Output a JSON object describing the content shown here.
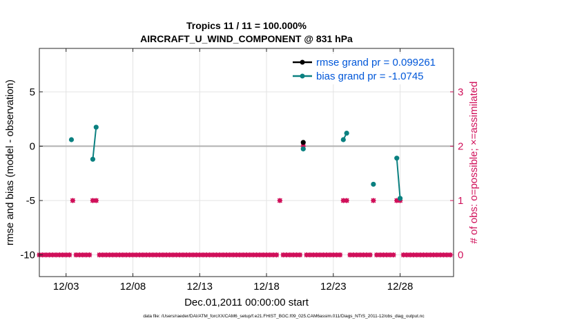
{
  "chart_data": {
    "type": "scatter",
    "title": "Tropics 11 / 11 = 100.000%",
    "subtitle": "AIRCRAFT_U_WIND_COMPONENT @ 831 hPa",
    "xlabel": "Dec.01,2011 00:00:00 start",
    "ylabel_left": "rmse and bias (model - observation)",
    "ylabel_right": "# of obs: o=possible; ×=assimilated",
    "footnote": "data file: /Users/raeder/DAI/ATM_forcXX/CAM6_setup/f.e21.FHIST_BGC.f09_025.CAM6assim.011/Diags_NTrS_2011-12/obs_diag_output.nc",
    "x_tick_labels": [
      "12/03",
      "12/08",
      "12/13",
      "12/18",
      "12/23",
      "12/28"
    ],
    "x_tick_days": [
      3,
      8,
      13,
      18,
      23,
      28
    ],
    "xlim_days": [
      1,
      32
    ],
    "ylim_left": [
      -12,
      9
    ],
    "y_ticks_left": [
      -10,
      -5,
      0,
      5
    ],
    "ylim_right": [
      -0.4,
      3.8
    ],
    "y_ticks_right": [
      0,
      1,
      2,
      3
    ],
    "grid": true,
    "legend_placement": "top-right",
    "series": [
      {
        "name": "rmse grand pr = 0.099261",
        "color": "#000000",
        "axis": "left",
        "points": [
          [
            20.75,
            0.35
          ]
        ]
      },
      {
        "name": "bias grand pr = -1.0745",
        "color": "#0a8080",
        "axis": "left",
        "points": [
          [
            3.4,
            0.6
          ],
          [
            5.0,
            -1.2
          ],
          [
            5.25,
            1.75
          ],
          [
            20.75,
            -0.25
          ],
          [
            23.75,
            0.6
          ],
          [
            24.0,
            1.2
          ],
          [
            26.0,
            -3.5
          ],
          [
            27.75,
            -1.1
          ],
          [
            28.0,
            -4.8
          ]
        ]
      }
    ],
    "obs_counts": {
      "possible_color": "#d0105a",
      "assimilated_color": "#d0105a",
      "axis": "right",
      "points": [
        [
          1.0,
          0
        ],
        [
          1.25,
          0
        ],
        [
          1.5,
          0
        ],
        [
          1.75,
          0
        ],
        [
          2.0,
          0
        ],
        [
          2.25,
          0
        ],
        [
          2.5,
          0
        ],
        [
          2.75,
          0
        ],
        [
          3.0,
          0
        ],
        [
          3.25,
          0
        ],
        [
          3.5,
          1
        ],
        [
          3.75,
          0
        ],
        [
          4.0,
          0
        ],
        [
          4.25,
          0
        ],
        [
          4.5,
          0
        ],
        [
          4.75,
          0
        ],
        [
          5.0,
          1
        ],
        [
          5.25,
          1
        ],
        [
          5.5,
          0
        ],
        [
          5.75,
          0
        ],
        [
          6.0,
          0
        ],
        [
          6.25,
          0
        ],
        [
          6.5,
          0
        ],
        [
          6.75,
          0
        ],
        [
          7.0,
          0
        ],
        [
          7.25,
          0
        ],
        [
          7.5,
          0
        ],
        [
          7.75,
          0
        ],
        [
          8.0,
          0
        ],
        [
          8.25,
          0
        ],
        [
          8.5,
          0
        ],
        [
          8.75,
          0
        ],
        [
          9.0,
          0
        ],
        [
          9.25,
          0
        ],
        [
          9.5,
          0
        ],
        [
          9.75,
          0
        ],
        [
          10.0,
          0
        ],
        [
          10.25,
          0
        ],
        [
          10.5,
          0
        ],
        [
          10.75,
          0
        ],
        [
          11.0,
          0
        ],
        [
          11.25,
          0
        ],
        [
          11.5,
          0
        ],
        [
          11.75,
          0
        ],
        [
          12.0,
          0
        ],
        [
          12.25,
          0
        ],
        [
          12.5,
          0
        ],
        [
          12.75,
          0
        ],
        [
          13.0,
          0
        ],
        [
          13.25,
          0
        ],
        [
          13.5,
          0
        ],
        [
          13.75,
          0
        ],
        [
          14.0,
          0
        ],
        [
          14.25,
          0
        ],
        [
          14.5,
          0
        ],
        [
          14.75,
          0
        ],
        [
          15.0,
          0
        ],
        [
          15.25,
          0
        ],
        [
          15.5,
          0
        ],
        [
          15.75,
          0
        ],
        [
          16.0,
          0
        ],
        [
          16.25,
          0
        ],
        [
          16.5,
          0
        ],
        [
          16.75,
          0
        ],
        [
          17.0,
          0
        ],
        [
          17.25,
          0
        ],
        [
          17.5,
          0
        ],
        [
          17.75,
          0
        ],
        [
          18.0,
          0
        ],
        [
          18.25,
          0
        ],
        [
          18.5,
          0
        ],
        [
          18.75,
          0
        ],
        [
          19.0,
          1
        ],
        [
          19.25,
          0
        ],
        [
          19.5,
          0
        ],
        [
          19.75,
          0
        ],
        [
          20.0,
          0
        ],
        [
          20.25,
          0
        ],
        [
          20.5,
          0
        ],
        [
          20.75,
          2
        ],
        [
          21.0,
          0
        ],
        [
          21.25,
          0
        ],
        [
          21.5,
          0
        ],
        [
          21.75,
          0
        ],
        [
          22.0,
          0
        ],
        [
          22.25,
          0
        ],
        [
          22.5,
          0
        ],
        [
          22.75,
          0
        ],
        [
          23.0,
          0
        ],
        [
          23.25,
          0
        ],
        [
          23.5,
          0
        ],
        [
          23.75,
          1
        ],
        [
          24.0,
          1
        ],
        [
          24.25,
          0
        ],
        [
          24.5,
          0
        ],
        [
          24.75,
          0
        ],
        [
          25.0,
          0
        ],
        [
          25.25,
          0
        ],
        [
          25.5,
          0
        ],
        [
          25.75,
          0
        ],
        [
          26.0,
          1
        ],
        [
          26.25,
          0
        ],
        [
          26.5,
          0
        ],
        [
          26.75,
          0
        ],
        [
          27.0,
          0
        ],
        [
          27.25,
          0
        ],
        [
          27.5,
          0
        ],
        [
          27.75,
          1
        ],
        [
          28.0,
          1
        ],
        [
          28.25,
          0
        ],
        [
          28.5,
          0
        ],
        [
          28.75,
          0
        ],
        [
          29.0,
          0
        ],
        [
          29.25,
          0
        ],
        [
          29.5,
          0
        ],
        [
          29.75,
          0
        ],
        [
          30.0,
          0
        ],
        [
          30.25,
          0
        ],
        [
          30.5,
          0
        ],
        [
          30.75,
          0
        ],
        [
          31.0,
          0
        ],
        [
          31.25,
          0
        ],
        [
          31.5,
          0
        ],
        [
          31.75,
          0
        ]
      ]
    }
  }
}
